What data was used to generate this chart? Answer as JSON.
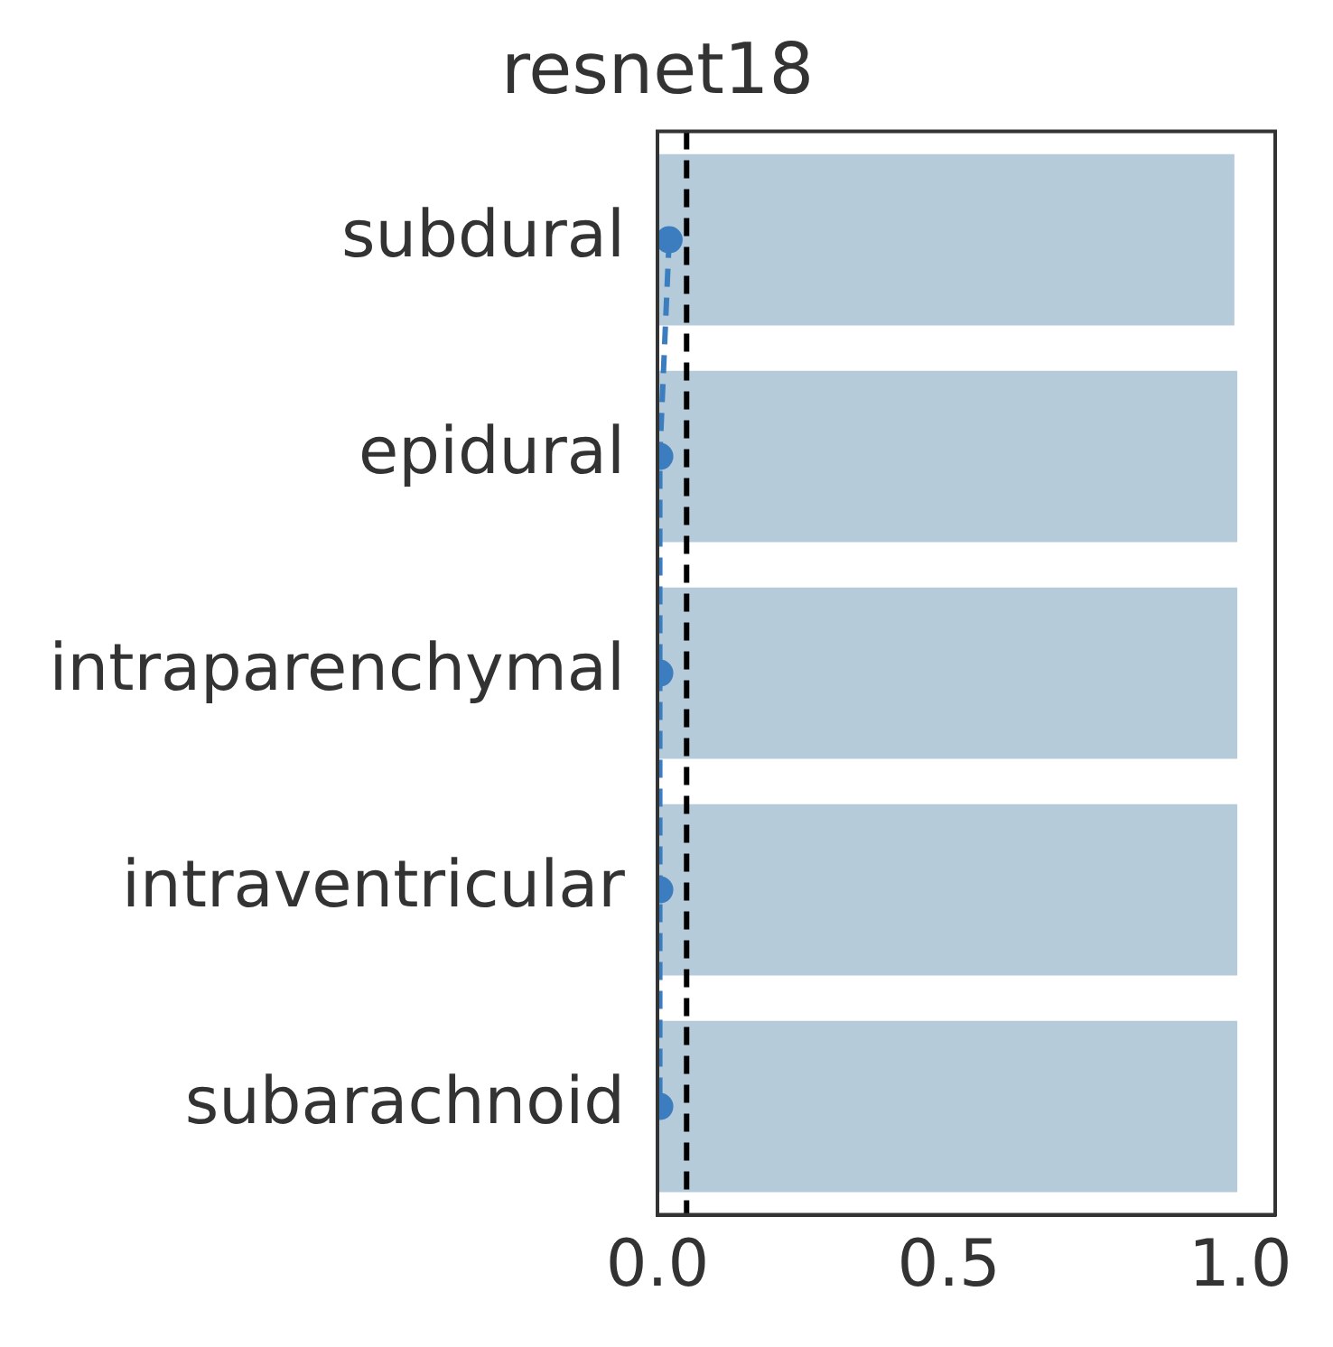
{
  "chart_data": {
    "type": "bar",
    "orientation": "horizontal",
    "title": "resnet18",
    "categories": [
      "subdural",
      "epidural",
      "intraparenchymal",
      "intraventricular",
      "subarachnoid"
    ],
    "series": [
      {
        "color": "#b5cbd9",
        "values": [
          0.99,
          0.995,
          0.995,
          0.995,
          0.995
        ]
      },
      {
        "type": "line",
        "color": "#3b7dbf",
        "values": [
          0.02,
          0.004,
          0.004,
          0.004,
          0.004
        ],
        "marker": "circle",
        "line_style": "dashed"
      }
    ],
    "xlim": [
      0,
      1.06
    ],
    "xticks": [
      {
        "value": 0,
        "label": "0.0"
      },
      {
        "value": 0.5,
        "label": "0.5"
      },
      {
        "value": 1,
        "label": "1.0"
      }
    ],
    "ref_lines": [
      {
        "axis": "x",
        "value": 0.05,
        "color": "#000000",
        "line_style": "dashed"
      }
    ],
    "grid": false,
    "legend": false
  }
}
